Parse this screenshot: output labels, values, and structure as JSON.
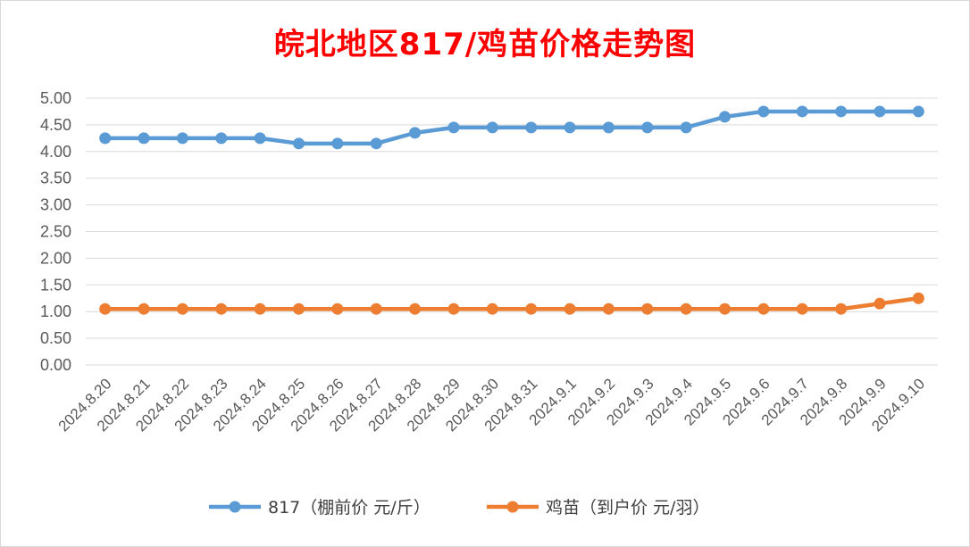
{
  "chart_data": {
    "type": "line",
    "title": "皖北地区817/鸡苗价格走势图",
    "categories": [
      "2024.8.20",
      "2024.8.21",
      "2024.8.22",
      "2024.8.23",
      "2024.8.24",
      "2024.8.25",
      "2024.8.26",
      "2024.8.27",
      "2024.8.28",
      "2024.8.29",
      "2024.8.30",
      "2024.8.31",
      "2024.9.1",
      "2024.9.2",
      "2024.9.3",
      "2024.9.4",
      "2024.9.5",
      "2024.9.6",
      "2024.9.7",
      "2024.9.8",
      "2024.9.9",
      "2024.9.10"
    ],
    "series": [
      {
        "name": "817（棚前价 元/斤）",
        "color": "#5b9bd5",
        "values": [
          4.25,
          4.25,
          4.25,
          4.25,
          4.25,
          4.15,
          4.15,
          4.15,
          4.35,
          4.45,
          4.45,
          4.45,
          4.45,
          4.45,
          4.45,
          4.45,
          4.65,
          4.75,
          4.75,
          4.75,
          4.75,
          4.75
        ]
      },
      {
        "name": "鸡苗（到户价 元/羽）",
        "color": "#ed7d31",
        "values": [
          1.05,
          1.05,
          1.05,
          1.05,
          1.05,
          1.05,
          1.05,
          1.05,
          1.05,
          1.05,
          1.05,
          1.05,
          1.05,
          1.05,
          1.05,
          1.05,
          1.05,
          1.05,
          1.05,
          1.05,
          1.15,
          1.25
        ]
      }
    ],
    "ylim": [
      0,
      5
    ],
    "yticks": [
      "0.00",
      "0.50",
      "1.00",
      "1.50",
      "2.00",
      "2.50",
      "3.00",
      "3.50",
      "4.00",
      "4.50",
      "5.00"
    ],
    "grid": true,
    "legend_position": "bottom",
    "title_color": "#ff0000",
    "xlabel": "",
    "ylabel": ""
  }
}
